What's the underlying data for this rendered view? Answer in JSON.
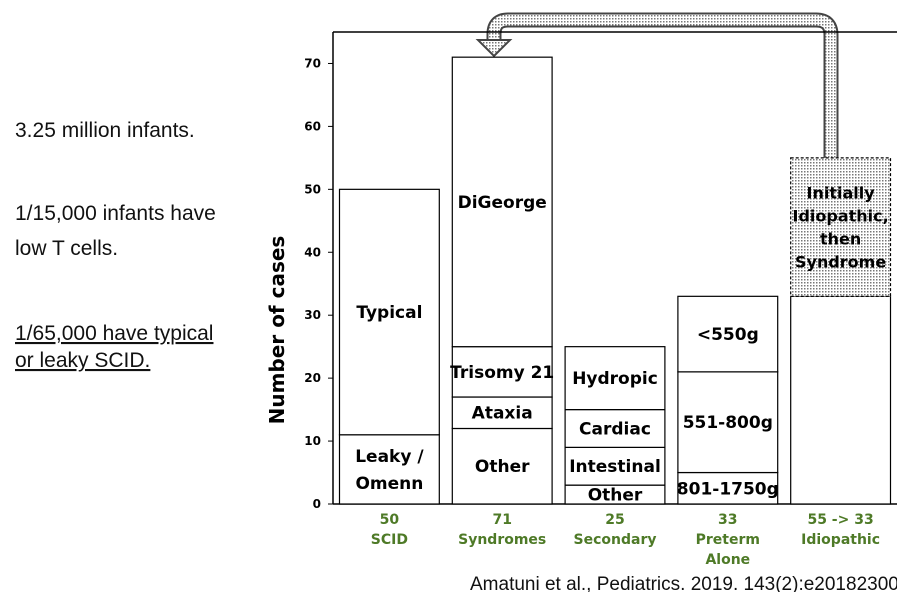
{
  "notes": {
    "lines": [
      "3.25 million infants.",
      "1/15,000 infants have",
      "low T cells."
    ],
    "underlined": [
      "1/65,000 have typical",
      "or  leaky SCID."
    ],
    "citation": "Amatuni et al., Pediatrics. 2019. 143(2):e20182300"
  },
  "chart_data": {
    "type": "stacked-bar",
    "y_label": "Number of cases",
    "ylim": [
      0,
      75
    ],
    "yticks": [
      0,
      10,
      20,
      30,
      40,
      50,
      60,
      70
    ],
    "category_color": "#4e7a27",
    "categories": [
      [
        "50",
        "SCID"
      ],
      [
        "71",
        "Syndromes"
      ],
      [
        "25",
        "Secondary"
      ],
      [
        "33",
        "Preterm",
        "Alone"
      ],
      [
        "55 -> 33",
        "Idiopathic"
      ]
    ],
    "bars": [
      {
        "segments": [
          {
            "name": [
              "Leaky /",
              "Omenn"
            ],
            "value": 11
          },
          {
            "name": [
              "Typical"
            ],
            "value": 39
          }
        ]
      },
      {
        "segments": [
          {
            "name": [
              "Other"
            ],
            "value": 12
          },
          {
            "name": [
              "Ataxia"
            ],
            "value": 5
          },
          {
            "name": [
              "Trisomy 21"
            ],
            "value": 8
          },
          {
            "name": [
              "DiGeorge"
            ],
            "value": 46
          }
        ]
      },
      {
        "segments": [
          {
            "name": [
              "Other"
            ],
            "value": 3
          },
          {
            "name": [
              "Intestinal"
            ],
            "value": 6
          },
          {
            "name": [
              "Cardiac"
            ],
            "value": 6
          },
          {
            "name": [
              "Hydropic"
            ],
            "value": 10
          }
        ]
      },
      {
        "segments": [
          {
            "name": [
              "801-1750g"
            ],
            "value": 5
          },
          {
            "name": [
              "551-800g"
            ],
            "value": 16
          },
          {
            "name": [
              "<550g"
            ],
            "value": 12
          }
        ]
      },
      {
        "segments": [
          {
            "name": null,
            "value": 33
          },
          {
            "name": [
              "Initially",
              "Idiopathic,",
              "then",
              "Syndrome"
            ],
            "value": 22,
            "pattern": "dotted"
          }
        ]
      }
    ]
  }
}
